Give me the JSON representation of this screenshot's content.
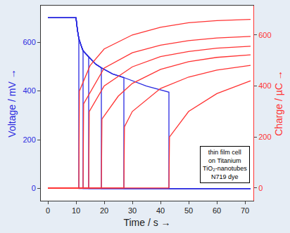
{
  "chart_data": {
    "type": "line",
    "xlabel": "Time / s →",
    "ylabel": "Voltage / mV →",
    "y2label": "Charge / µC →",
    "annotation": [
      "thin film cell",
      "on Titanium",
      "TiO₂-nanotubes",
      "N719 dye"
    ],
    "grid": false,
    "xlim": [
      -2.5,
      73
    ],
    "xticks": [
      0,
      10,
      20,
      30,
      40,
      50,
      60,
      70
    ],
    "ylim": [
      -50,
      750
    ],
    "yticks": [
      0,
      200,
      400,
      600
    ],
    "y2lim": [
      -50,
      715
    ],
    "y2ticks": [
      0,
      200,
      400,
      600
    ],
    "series": [
      {
        "color": "#2a2ae0",
        "x": [
          0,
          10,
          10.5,
          11,
          11,
          72
        ],
        "values": [
          700,
          700,
          650,
          615,
          0,
          0
        ]
      },
      {
        "color": "#2a2ae0",
        "x": [
          0,
          10,
          10.5,
          11,
          12,
          12.5,
          12.5,
          72
        ],
        "values": [
          700,
          700,
          650,
          615,
          580,
          565,
          0,
          0
        ]
      },
      {
        "color": "#2a2ae0",
        "x": [
          0,
          10,
          10.5,
          11,
          12,
          12.5,
          14.5,
          14.5,
          72
        ],
        "values": [
          700,
          700,
          650,
          615,
          580,
          565,
          540,
          0,
          0
        ]
      },
      {
        "color": "#2a2ae0",
        "x": [
          0,
          10,
          10.5,
          11,
          12,
          12.5,
          14.5,
          17,
          19,
          19,
          72
        ],
        "values": [
          700,
          700,
          650,
          615,
          580,
          565,
          540,
          510,
          495,
          0,
          0
        ]
      },
      {
        "color": "#2a2ae0",
        "x": [
          0,
          10,
          10.5,
          11,
          12,
          12.5,
          14.5,
          17,
          19,
          23,
          27,
          27,
          72
        ],
        "values": [
          700,
          700,
          650,
          615,
          580,
          565,
          540,
          510,
          495,
          470,
          455,
          0,
          0
        ]
      },
      {
        "color": "#2a2ae0",
        "x": [
          0,
          10,
          10.5,
          11,
          12,
          12.5,
          14.5,
          17,
          19,
          23,
          27,
          35,
          43,
          43,
          72
        ],
        "values": [
          700,
          700,
          650,
          615,
          580,
          565,
          540,
          510,
          495,
          470,
          455,
          420,
          395,
          0,
          0
        ]
      },
      {
        "color": "#ff3333",
        "axis": "y2",
        "x": [
          0,
          11,
          11.2,
          15,
          20,
          30,
          40,
          50,
          60,
          72
        ],
        "values": [
          0,
          0,
          380,
          480,
          545,
          600,
          630,
          648,
          656,
          661
        ]
      },
      {
        "color": "#ff3333",
        "axis": "y2",
        "x": [
          0,
          12.5,
          12.7,
          20,
          30,
          40,
          50,
          60,
          72
        ],
        "values": [
          0,
          0,
          330,
          470,
          530,
          560,
          578,
          588,
          594
        ]
      },
      {
        "color": "#ff3333",
        "axis": "y2",
        "x": [
          0,
          14.5,
          14.7,
          20,
          30,
          40,
          50,
          60,
          72
        ],
        "values": [
          0,
          0,
          300,
          400,
          475,
          515,
          535,
          548,
          556
        ]
      },
      {
        "color": "#ff3333",
        "axis": "y2",
        "x": [
          0,
          19,
          19.2,
          25,
          30,
          40,
          50,
          60,
          72
        ],
        "values": [
          0,
          0,
          270,
          360,
          410,
          465,
          495,
          512,
          522
        ]
      },
      {
        "color": "#ff3333",
        "axis": "y2",
        "x": [
          0,
          27,
          27.2,
          30,
          40,
          50,
          60,
          72
        ],
        "values": [
          0,
          0,
          240,
          300,
          390,
          435,
          462,
          481
        ]
      },
      {
        "color": "#ff3333",
        "axis": "y2",
        "x": [
          0,
          43,
          43.2,
          50,
          60,
          72
        ],
        "values": [
          0,
          0,
          200,
          300,
          370,
          420
        ]
      }
    ]
  }
}
